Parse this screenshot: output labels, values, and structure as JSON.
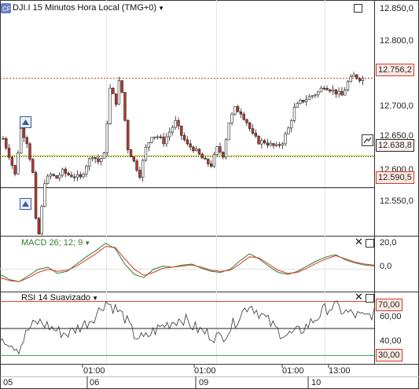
{
  "main_pane": {
    "title": "DJI.I 15 Minutos Hora Local (TMG+0)",
    "y_ticks": [
      "12.850,0",
      "12.800,0",
      "12.756,2",
      "12.700,0",
      "12.650,0",
      "12.638,8",
      "12.600,0",
      "12.590,5",
      "12.550,0"
    ],
    "last_price": "12.756,2",
    "line_green_label": "12.638,8",
    "line_black_label": "12.590,5"
  },
  "macd_pane": {
    "title": "MACD 26; 12; 9",
    "y_ticks": [
      "20,0",
      "0,0"
    ]
  },
  "rsi_pane": {
    "title": "RSI 14 Suavizado",
    "y_ticks": [
      "70,00",
      "60,00",
      "40,00",
      "30,00"
    ]
  },
  "x_axis": {
    "time_labels": [
      "01:00",
      "01:00",
      "01:00",
      "13:00"
    ],
    "day_labels": [
      "05",
      "06",
      "09",
      "10"
    ]
  },
  "colors": {
    "candle_up": "#ffffff",
    "candle_down": "#c0392b",
    "macd_line": "#2f7d2f",
    "signal_line": "#d23b2a",
    "resistance": "#c0392b",
    "support_green": "#b7c400",
    "rsi_overbought": "#d23b2a",
    "rsi_oversold": "#3aa04a"
  },
  "icons": {
    "logo": "cfd-logo-icon",
    "maximize": "window-maximize-icon",
    "close": "close-icon",
    "alert": "alert-triangle-icon",
    "chart_tool": "trend-tool-icon"
  },
  "chart_data": [
    {
      "type": "candlestick",
      "title": "DJI.I 15 Minutos Hora Local (TMG+0)",
      "ylim": [
        12520,
        12870
      ],
      "close_path": [
        [
          0,
          12665
        ],
        [
          2,
          12640
        ],
        [
          4,
          12610
        ],
        [
          6,
          12680
        ],
        [
          8,
          12660
        ],
        [
          10,
          12612
        ],
        [
          11,
          12540
        ],
        [
          12,
          12520
        ],
        [
          14,
          12600
        ],
        [
          16,
          12610
        ],
        [
          18,
          12605
        ],
        [
          20,
          12615
        ],
        [
          22,
          12610
        ],
        [
          24,
          12608
        ],
        [
          26,
          12605
        ],
        [
          28,
          12625
        ],
        [
          30,
          12640
        ],
        [
          32,
          12630
        ],
        [
          34,
          12640
        ],
        [
          36,
          12740
        ],
        [
          38,
          12720
        ],
        [
          39,
          12750
        ],
        [
          40,
          12735
        ],
        [
          42,
          12650
        ],
        [
          44,
          12630
        ],
        [
          46,
          12610
        ],
        [
          48,
          12650
        ],
        [
          50,
          12670
        ],
        [
          52,
          12668
        ],
        [
          54,
          12660
        ],
        [
          56,
          12675
        ],
        [
          58,
          12690
        ],
        [
          60,
          12670
        ],
        [
          62,
          12655
        ],
        [
          64,
          12650
        ],
        [
          66,
          12640
        ],
        [
          68,
          12630
        ],
        [
          70,
          12625
        ],
        [
          72,
          12650
        ],
        [
          74,
          12640
        ],
        [
          76,
          12690
        ],
        [
          78,
          12710
        ],
        [
          80,
          12705
        ],
        [
          82,
          12690
        ],
        [
          84,
          12670
        ],
        [
          86,
          12660
        ],
        [
          88,
          12660
        ],
        [
          90,
          12655
        ],
        [
          92,
          12652
        ],
        [
          94,
          12660
        ],
        [
          96,
          12680
        ],
        [
          98,
          12710
        ],
        [
          100,
          12720
        ],
        [
          102,
          12725
        ],
        [
          104,
          12730
        ],
        [
          106,
          12735
        ],
        [
          108,
          12745
        ],
        [
          110,
          12740
        ],
        [
          112,
          12735
        ],
        [
          114,
          12730
        ],
        [
          116,
          12750
        ],
        [
          118,
          12760
        ],
        [
          120,
          12756
        ]
      ],
      "series": [
        {
          "name": "last",
          "values": [
            12756.2
          ]
        },
        {
          "name": "support",
          "values": [
            12638.8
          ]
        },
        {
          "name": "support2",
          "values": [
            12590.5
          ]
        }
      ]
    },
    {
      "type": "line",
      "title": "MACD 26; 12; 9",
      "ylim": [
        -20,
        30
      ],
      "series": [
        {
          "name": "MACD",
          "values": [
            -5,
            -10,
            -12,
            -6,
            0,
            2,
            -4,
            -2,
            5,
            12,
            18,
            25,
            20,
            5,
            -5,
            -8,
            0,
            3,
            2,
            4,
            5,
            1,
            -2,
            -3,
            0,
            8,
            15,
            10,
            3,
            -3,
            -5,
            -2,
            3,
            8,
            12,
            14,
            9,
            6,
            4,
            3
          ]
        },
        {
          "name": "Signal",
          "values": [
            -8,
            -11,
            -12,
            -8,
            -3,
            0,
            -2,
            -1,
            3,
            9,
            15,
            22,
            21,
            10,
            0,
            -6,
            -3,
            1,
            2,
            3,
            4,
            2,
            -1,
            -2,
            -1,
            5,
            12,
            11,
            5,
            -1,
            -4,
            -3,
            1,
            6,
            10,
            13,
            10,
            7,
            5,
            4
          ]
        }
      ]
    },
    {
      "type": "line",
      "title": "RSI 14 Suavizado",
      "ylim": [
        25,
        75
      ],
      "series": [
        {
          "name": "RSI",
          "values": [
            45,
            40,
            35,
            50,
            55,
            52,
            48,
            46,
            50,
            54,
            60,
            70,
            65,
            58,
            45,
            42,
            48,
            52,
            55,
            58,
            52,
            48,
            45,
            43,
            50,
            60,
            68,
            62,
            55,
            48,
            45,
            47,
            52,
            58,
            65,
            66,
            62,
            60,
            58,
            62
          ]
        }
      ]
    }
  ]
}
